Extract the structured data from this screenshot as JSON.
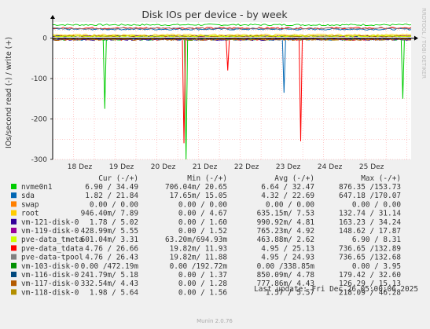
{
  "colors": {
    "background": "#f0f0f0",
    "plot_bg": "#ffffff",
    "grid": "#ff9999",
    "axis": "#000000",
    "text": "#555555"
  },
  "chart_data": {
    "type": "line",
    "title": "Disk IOs per device - by week",
    "ylabel": "IOs/second read (-) / write (+)",
    "side_label": "RRDTOOL / TOBI OETIKER",
    "x_ticks": [
      "18 Dez",
      "19 Dez",
      "20 Dez",
      "21 Dez",
      "22 Dez",
      "23 Dez",
      "24 Dez",
      "25 Dez"
    ],
    "y_ticks": [
      0,
      -100,
      -200,
      -300
    ],
    "ylim": [
      -300,
      40
    ],
    "xlim_days": [
      0,
      8.6
    ],
    "grid": true,
    "columns": [
      "Cur (-/+)",
      "Min (-/+)",
      "Avg (-/+)",
      "Max (-/+)"
    ],
    "series": [
      {
        "name": "nvme0n1",
        "color": "#00cc00",
        "cur": "6.90 / 34.49",
        "min": "706.04m/ 20.65",
        "avg": "6.64 / 32.47",
        "max": "876.35 /153.73"
      },
      {
        "name": "sda",
        "color": "#0066b3",
        "cur": "1.82 / 21.84",
        "min": "17.65m/ 15.05",
        "avg": "4.32 / 22.69",
        "max": "647.18 /170.07"
      },
      {
        "name": "swap",
        "color": "#ff8000",
        "cur": "0.00 / 0.00",
        "min": "0.00 / 0.00",
        "avg": "0.00 / 0.00",
        "max": "0.00 / 0.00"
      },
      {
        "name": "root",
        "color": "#ffcc00",
        "cur": "946.40m/ 7.89",
        "min": "0.00 / 4.67",
        "avg": "635.15m/ 7.53",
        "max": "132.74 / 31.14"
      },
      {
        "name": "vm-121-disk-0",
        "color": "#330099",
        "cur": "1.78 / 5.02",
        "min": "0.00 / 1.60",
        "avg": "990.92m/ 4.81",
        "max": "163.23 / 34.24"
      },
      {
        "name": "vm-119-disk-0",
        "color": "#990099",
        "cur": "428.99m/ 5.55",
        "min": "0.00 / 1.52",
        "avg": "765.23m/ 4.92",
        "max": "148.62 / 17.87"
      },
      {
        "name": "pve-data_tmeta",
        "color": "#ccff00",
        "cur": "601.04m/ 3.31",
        "min": "63.20m/694.93m",
        "avg": "463.88m/ 2.62",
        "max": "6.90 / 8.31"
      },
      {
        "name": "pve-data_tdata",
        "color": "#ff0000",
        "cur": "4.76 / 26.66",
        "min": "19.82m/ 11.93",
        "avg": "4.95 / 25.13",
        "max": "736.65 /132.89"
      },
      {
        "name": "pve-data-tpool",
        "color": "#808080",
        "cur": "4.76 / 26.43",
        "min": "19.82m/ 11.88",
        "avg": "4.95 / 24.93",
        "max": "736.65 /132.68"
      },
      {
        "name": "vm-103-disk-0",
        "color": "#008f00",
        "cur": "0.00 /472.19m",
        "min": "0.00 /192.72m",
        "avg": "0.00 /338.85m",
        "max": "0.00 / 3.95"
      },
      {
        "name": "vm-116-disk-0",
        "color": "#00487d",
        "cur": "241.79m/ 5.18",
        "min": "0.00 / 1.37",
        "avg": "850.09m/ 4.78",
        "max": "179.42 / 32.60"
      },
      {
        "name": "vm-117-disk-0",
        "color": "#b35a00",
        "cur": "332.54m/ 4.43",
        "min": "0.00 / 1.28",
        "avg": "777.86m/ 4.43",
        "max": "126.29 / 15.13"
      },
      {
        "name": "vm-118-disk-0",
        "color": "#b38f00",
        "cur": "1.98 / 5.64",
        "min": "0.00 / 1.56",
        "avg": "1.57 / 5.57",
        "max": "218.09 / 46.28"
      }
    ],
    "spikes": [
      {
        "day": 1.25,
        "read": -175,
        "series": "nvme0n1"
      },
      {
        "day": 3.2,
        "read": -300,
        "series": "nvme0n1"
      },
      {
        "day": 3.15,
        "read": -260,
        "series": "pve-data_tdata"
      },
      {
        "day": 4.2,
        "read": -80,
        "series": "pve-data_tdata"
      },
      {
        "day": 5.55,
        "read": -135,
        "series": "sda"
      },
      {
        "day": 5.95,
        "read": -255,
        "series": "pve-data_tdata"
      },
      {
        "day": 8.4,
        "read": -150,
        "series": "nvme0n1"
      }
    ],
    "write_levels": {
      "nvme0n1": 33,
      "sda": 22,
      "pve-data_tdata": 25,
      "pve-data-tpool": 24,
      "root": 8
    }
  },
  "footer": {
    "last_update": "Last update: Fri Dec 26 05:00:06 2025",
    "version": "Munin 2.0.76"
  }
}
